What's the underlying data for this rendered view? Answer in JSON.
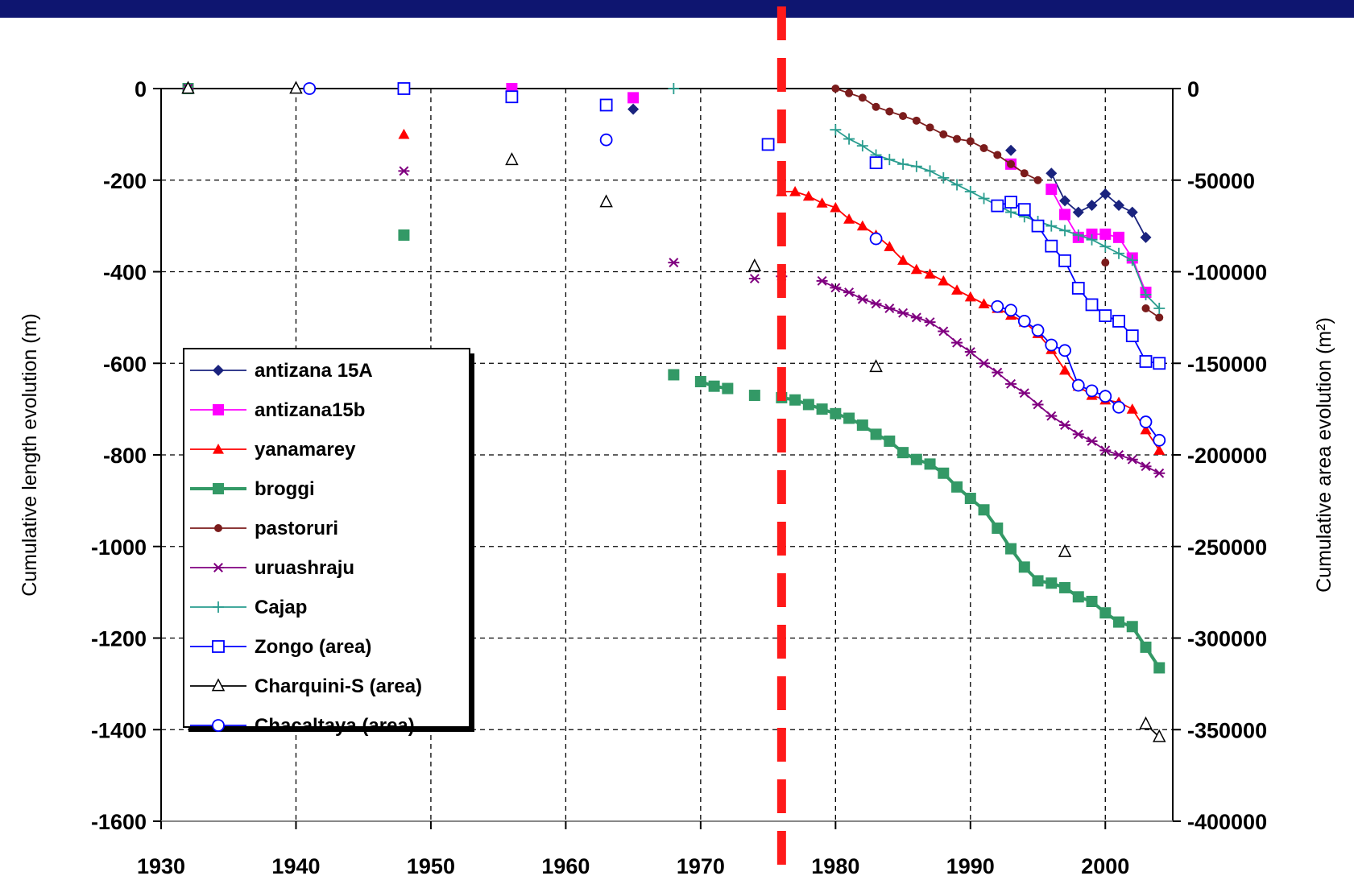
{
  "chart_data": {
    "type": "line",
    "title": "",
    "xlabel": "",
    "ylabel": "Cumulative length evolution  (m)",
    "y2label": "Cumulative area evolution (m²)",
    "xlim": [
      1930,
      2005
    ],
    "ylim": [
      -1600,
      0
    ],
    "y2lim": [
      -400000,
      0
    ],
    "x_ticks": [
      1930,
      1940,
      1950,
      1960,
      1970,
      1980,
      1990,
      2000
    ],
    "y_ticks": [
      0,
      -200,
      -400,
      -600,
      -800,
      -1000,
      -1200,
      -1400,
      -1600
    ],
    "y2_ticks": [
      0,
      -50000,
      -100000,
      -150000,
      -200000,
      -250000,
      -300000,
      -350000,
      -400000
    ],
    "grid": "dashed",
    "legend_placement": "lower-left",
    "reference_line": {
      "x": 1976,
      "color": "#ff1a1a",
      "style": "dashed"
    },
    "series": [
      {
        "name": "antizana 15A",
        "color": "#1a237e",
        "marker": "diamond",
        "axis": "left",
        "points": [
          [
            1932,
            0
          ],
          [
            1965,
            -45
          ],
          [
            1993,
            -135
          ],
          [
            1996,
            -185
          ],
          [
            1997,
            -245
          ],
          [
            1998,
            -270
          ],
          [
            1999,
            -255
          ],
          [
            2000,
            -230
          ],
          [
            2001,
            -255
          ],
          [
            2002,
            -270
          ],
          [
            2003,
            -325
          ]
        ]
      },
      {
        "name": "antizana15b",
        "color": "#ff00ff",
        "marker": "square-filled",
        "axis": "left",
        "points": [
          [
            1956,
            0
          ],
          [
            1965,
            -20
          ],
          [
            1993,
            -165
          ],
          [
            1996,
            -220
          ],
          [
            1997,
            -275
          ],
          [
            1998,
            -325
          ],
          [
            1999,
            -318
          ],
          [
            2000,
            -318
          ],
          [
            2001,
            -325
          ],
          [
            2002,
            -370
          ],
          [
            2003,
            -445
          ]
        ]
      },
      {
        "name": "yanamarey",
        "color": "#ff0000",
        "marker": "triangle-filled",
        "axis": "left",
        "points": [
          [
            1932,
            0
          ],
          [
            1948,
            -100
          ],
          [
            1976,
            -225
          ],
          [
            1977,
            -225
          ],
          [
            1978,
            -235
          ],
          [
            1979,
            -250
          ],
          [
            1980,
            -260
          ],
          [
            1981,
            -285
          ],
          [
            1982,
            -300
          ],
          [
            1983,
            -320
          ],
          [
            1984,
            -345
          ],
          [
            1985,
            -375
          ],
          [
            1986,
            -395
          ],
          [
            1987,
            -405
          ],
          [
            1988,
            -420
          ],
          [
            1989,
            -440
          ],
          [
            1990,
            -455
          ],
          [
            1991,
            -470
          ],
          [
            1992,
            -480
          ],
          [
            1993,
            -495
          ],
          [
            1994,
            -510
          ],
          [
            1995,
            -535
          ],
          [
            1996,
            -570
          ],
          [
            1997,
            -615
          ],
          [
            1998,
            -650
          ],
          [
            1999,
            -670
          ],
          [
            2000,
            -680
          ],
          [
            2001,
            -685
          ],
          [
            2002,
            -700
          ],
          [
            2003,
            -745
          ],
          [
            2004,
            -790
          ]
        ]
      },
      {
        "name": "broggi",
        "color": "#339966",
        "marker": "square-filled",
        "axis": "left",
        "points": [
          [
            1932,
            0
          ],
          [
            1948,
            -320
          ],
          [
            1968,
            -625
          ],
          [
            1970,
            -640
          ],
          [
            1971,
            -650
          ],
          [
            1972,
            -655
          ],
          [
            1974,
            -670
          ],
          [
            1976,
            -675
          ],
          [
            1977,
            -680
          ],
          [
            1978,
            -690
          ],
          [
            1979,
            -700
          ],
          [
            1980,
            -710
          ],
          [
            1981,
            -720
          ],
          [
            1982,
            -735
          ],
          [
            1983,
            -755
          ],
          [
            1984,
            -770
          ],
          [
            1985,
            -795
          ],
          [
            1986,
            -810
          ],
          [
            1987,
            -820
          ],
          [
            1988,
            -840
          ],
          [
            1989,
            -870
          ],
          [
            1990,
            -895
          ],
          [
            1991,
            -920
          ],
          [
            1992,
            -960
          ],
          [
            1993,
            -1005
          ],
          [
            1994,
            -1045
          ],
          [
            1995,
            -1075
          ],
          [
            1996,
            -1080
          ],
          [
            1997,
            -1090
          ],
          [
            1998,
            -1110
          ],
          [
            1999,
            -1120
          ],
          [
            2000,
            -1145
          ],
          [
            2001,
            -1165
          ],
          [
            2002,
            -1175
          ],
          [
            2003,
            -1220
          ],
          [
            2004,
            -1265
          ]
        ]
      },
      {
        "name": "pastoruri",
        "color": "#7b1c1c",
        "marker": "circle-filled",
        "axis": "left",
        "points": [
          [
            1980,
            0
          ],
          [
            1981,
            -10
          ],
          [
            1982,
            -20
          ],
          [
            1983,
            -40
          ],
          [
            1984,
            -50
          ],
          [
            1985,
            -60
          ],
          [
            1986,
            -70
          ],
          [
            1987,
            -85
          ],
          [
            1988,
            -100
          ],
          [
            1989,
            -110
          ],
          [
            1990,
            -115
          ],
          [
            1991,
            -130
          ],
          [
            1992,
            -145
          ],
          [
            1993,
            -165
          ],
          [
            1994,
            -185
          ],
          [
            1995,
            -200
          ],
          [
            2000,
            -380
          ],
          [
            2003,
            -480
          ],
          [
            2004,
            -500
          ]
        ]
      },
      {
        "name": "uruashraju",
        "color": "#800080",
        "marker": "asterisk",
        "axis": "left",
        "points": [
          [
            1932,
            0
          ],
          [
            1948,
            -180
          ],
          [
            1968,
            -380
          ],
          [
            1974,
            -415
          ],
          [
            1976,
            -410
          ],
          [
            1979,
            -420
          ],
          [
            1980,
            -435
          ],
          [
            1981,
            -445
          ],
          [
            1982,
            -460
          ],
          [
            1983,
            -470
          ],
          [
            1984,
            -480
          ],
          [
            1985,
            -490
          ],
          [
            1986,
            -500
          ],
          [
            1987,
            -510
          ],
          [
            1988,
            -530
          ],
          [
            1989,
            -555
          ],
          [
            1990,
            -575
          ],
          [
            1991,
            -600
          ],
          [
            1992,
            -620
          ],
          [
            1993,
            -645
          ],
          [
            1994,
            -665
          ],
          [
            1995,
            -690
          ],
          [
            1996,
            -715
          ],
          [
            1997,
            -735
          ],
          [
            1998,
            -755
          ],
          [
            1999,
            -770
          ],
          [
            2000,
            -790
          ],
          [
            2001,
            -800
          ],
          [
            2002,
            -810
          ],
          [
            2003,
            -825
          ],
          [
            2004,
            -840
          ]
        ]
      },
      {
        "name": "Cajap",
        "color": "#2a9d8f",
        "marker": "plus",
        "axis": "left",
        "points": [
          [
            1968,
            0
          ],
          [
            1980,
            -90
          ],
          [
            1981,
            -110
          ],
          [
            1982,
            -125
          ],
          [
            1983,
            -145
          ],
          [
            1984,
            -155
          ],
          [
            1985,
            -165
          ],
          [
            1986,
            -170
          ],
          [
            1987,
            -180
          ],
          [
            1988,
            -195
          ],
          [
            1989,
            -210
          ],
          [
            1990,
            -225
          ],
          [
            1991,
            -240
          ],
          [
            1992,
            -255
          ],
          [
            1993,
            -270
          ],
          [
            1994,
            -280
          ],
          [
            1995,
            -290
          ],
          [
            1996,
            -300
          ],
          [
            1997,
            -310
          ],
          [
            1998,
            -320
          ],
          [
            1999,
            -330
          ],
          [
            2000,
            -345
          ],
          [
            2001,
            -360
          ],
          [
            2002,
            -375
          ],
          [
            2003,
            -450
          ],
          [
            2004,
            -480
          ]
        ]
      },
      {
        "name": "Zongo (area)",
        "color": "#0000ff",
        "marker": "square-open",
        "axis": "right",
        "points": [
          [
            1948,
            0
          ],
          [
            1956,
            -4500
          ],
          [
            1963,
            -9000
          ],
          [
            1975,
            -30500
          ],
          [
            1983,
            -40500
          ],
          [
            1992,
            -64000
          ],
          [
            1993,
            -62000
          ],
          [
            1994,
            -66000
          ],
          [
            1995,
            -75000
          ],
          [
            1996,
            -86000
          ],
          [
            1997,
            -94000
          ],
          [
            1998,
            -109000
          ],
          [
            1999,
            -118000
          ],
          [
            2000,
            -124000
          ],
          [
            2001,
            -127000
          ],
          [
            2002,
            -135000
          ],
          [
            2003,
            -149000
          ],
          [
            2004,
            -150000
          ]
        ]
      },
      {
        "name": "Charquini-S (area)",
        "color": "#000000",
        "marker": "triangle-open",
        "axis": "right",
        "points": [
          [
            1932,
            0
          ],
          [
            1940,
            0
          ],
          [
            1956,
            -39000
          ],
          [
            1963,
            -62000
          ],
          [
            1974,
            -97000
          ],
          [
            1983,
            -152000
          ],
          [
            1997,
            -253000
          ],
          [
            2003,
            -347000
          ],
          [
            2004,
            -354000
          ]
        ]
      },
      {
        "name": "Chacaltaya (area)",
        "color": "#0000ff",
        "marker": "circle-open",
        "axis": "right",
        "points": [
          [
            1941,
            0
          ],
          [
            1963,
            -28000
          ],
          [
            1983,
            -82000
          ],
          [
            1992,
            -119000
          ],
          [
            1993,
            -121000
          ],
          [
            1994,
            -127000
          ],
          [
            1995,
            -132000
          ],
          [
            1996,
            -140000
          ],
          [
            1997,
            -143000
          ],
          [
            1998,
            -162000
          ],
          [
            1999,
            -165000
          ],
          [
            2000,
            -168000
          ],
          [
            2001,
            -174000
          ],
          [
            2003,
            -182000
          ],
          [
            2004,
            -192000
          ]
        ]
      }
    ]
  }
}
